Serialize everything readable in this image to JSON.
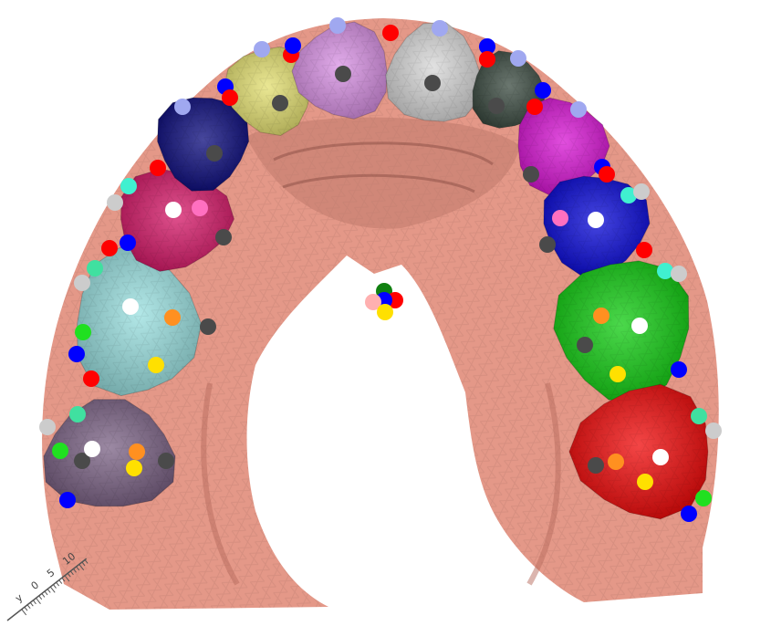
{
  "scene": {
    "background": "#ffffff",
    "gum_color": "#e49888",
    "gum_shadow": "#b86c5e",
    "palate_color": "#d28a7c"
  },
  "axis": {
    "labels": [
      "y",
      "0",
      "5",
      "10"
    ],
    "tick_color": "#555555"
  },
  "teeth": [
    {
      "id": "left-molar-2",
      "color": "#7b6285"
    },
    {
      "id": "left-molar-1",
      "color": "#99e0e0"
    },
    {
      "id": "left-premolar-2",
      "color": "#d61868"
    },
    {
      "id": "left-premolar-1",
      "color": "#0a0a7c"
    },
    {
      "id": "left-canine",
      "color": "#e4e070"
    },
    {
      "id": "left-lateral",
      "color": "#d890e4"
    },
    {
      "id": "right-lateral",
      "color": "#d8d8d8"
    },
    {
      "id": "right-canine",
      "color": "#3a4a40"
    },
    {
      "id": "right-premolar-1",
      "color": "#d814d4"
    },
    {
      "id": "right-premolar-2",
      "color": "#0808d8"
    },
    {
      "id": "right-molar-1",
      "color": "#10cc10"
    },
    {
      "id": "right-molar-2",
      "color": "#f00808"
    }
  ],
  "landmark_colors": {
    "red": "#ff0000",
    "blue": "#0000ff",
    "lavender": "#a0a8f0",
    "dark": "#4a4a4a",
    "white": "#ffffff",
    "pink": "#ff70c0",
    "cyan": "#40f0d0",
    "orange": "#ff9020",
    "yellow": "#ffe000",
    "green": "#20e020",
    "mint": "#40e0a0",
    "gray": "#cccccc",
    "darkgreen": "#108010",
    "lightpink": "#ffb0b0"
  }
}
